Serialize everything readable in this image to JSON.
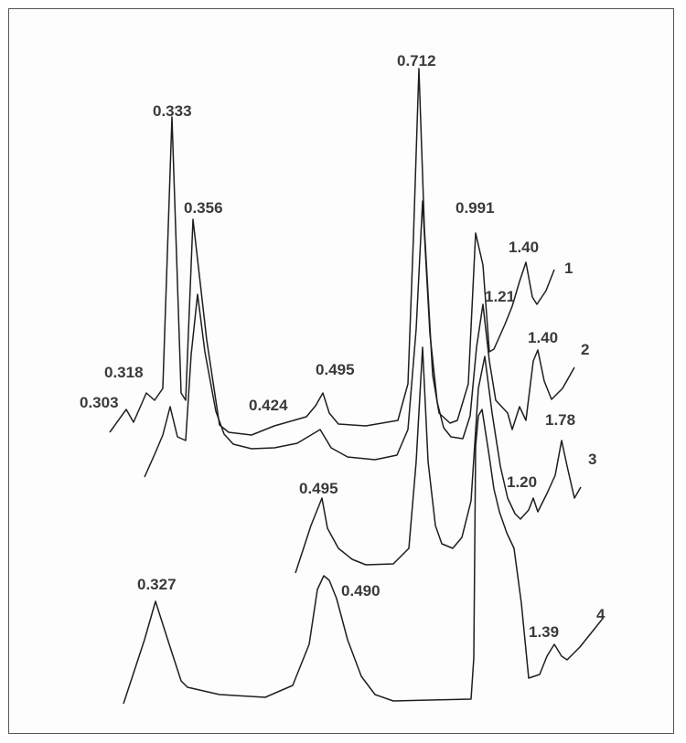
{
  "chart_data": {
    "type": "line",
    "title": "",
    "xlabel": "",
    "ylabel": "",
    "grid": false,
    "legend": "none",
    "series": [
      {
        "name": "1",
        "peaks": [
          {
            "label": "0.303"
          },
          {
            "label": "0.318"
          },
          {
            "label": "0.333"
          },
          {
            "label": "0.356"
          },
          {
            "label": "0.424"
          },
          {
            "label": "0.495"
          },
          {
            "label": "0.712"
          },
          {
            "label": "0.991"
          },
          {
            "label": "1.21"
          },
          {
            "label": "1.40"
          }
        ]
      },
      {
        "name": "2",
        "peaks": [
          {
            "label": "1.40"
          }
        ]
      },
      {
        "name": "3",
        "peaks": [
          {
            "label": "0.495"
          },
          {
            "label": "1.20"
          },
          {
            "label": "1.78"
          }
        ]
      },
      {
        "name": "4",
        "peaks": [
          {
            "label": "0.327"
          },
          {
            "label": "0.490"
          },
          {
            "label": "1.39"
          }
        ]
      }
    ]
  }
}
